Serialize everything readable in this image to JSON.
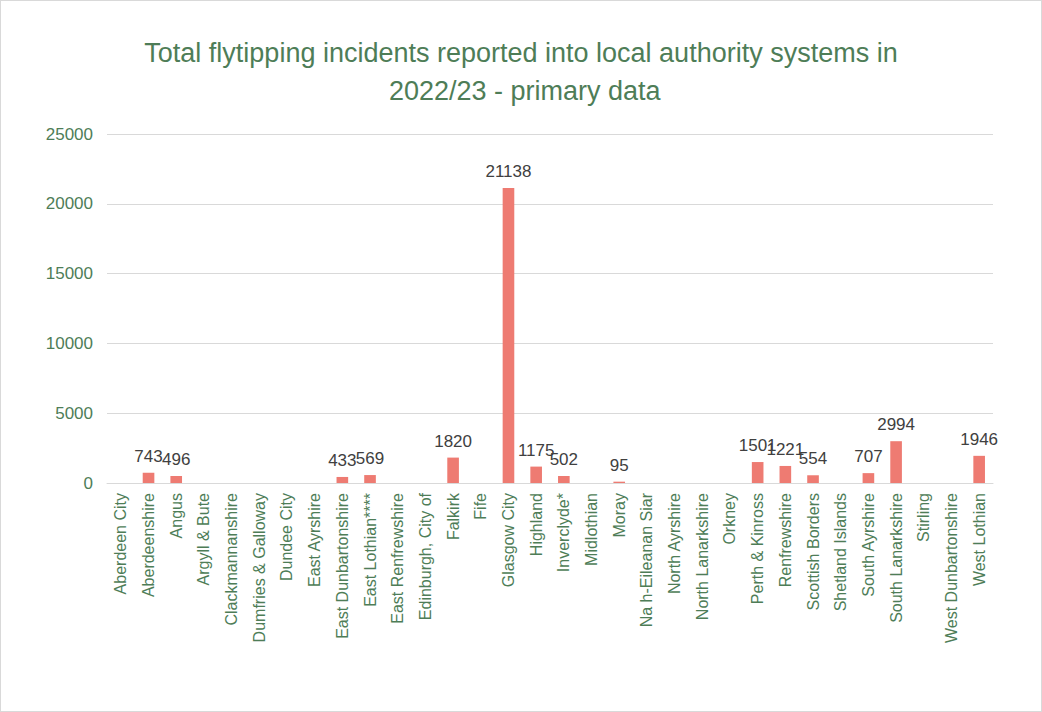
{
  "chart_data": {
    "type": "bar",
    "title": "Total flytipping incidents reported into local authority systems in 2022/23 - primary data",
    "categories": [
      "Aberdeen City",
      "Aberdeenshire",
      "Angus",
      "Argyll & Bute",
      "Clackmannanshire",
      "Dumfries & Galloway",
      "Dundee City",
      "East Ayrshire",
      "East Dunbartonshire",
      "East Lothian****",
      "East Renfrewshire",
      "Edinburgh, City of",
      "Falkirk",
      "Fife",
      "Glasgow City",
      "Highland",
      "Inverclyde*",
      "Midlothian",
      "Moray",
      "Na h-Eileanan Siar",
      "North Ayrshire",
      "North Lanarkshire",
      "Orkney",
      "Perth & Kinross",
      "Renfrewshire",
      "Scottish Borders",
      "Shetland Islands",
      "South Ayrshire",
      "South Lanarkshire",
      "Stirling",
      "West Dunbartonshire",
      "West Lothian"
    ],
    "values": [
      null,
      743,
      496,
      null,
      null,
      null,
      null,
      null,
      433,
      569,
      null,
      null,
      1820,
      null,
      21138,
      1175,
      502,
      null,
      95,
      null,
      null,
      null,
      null,
      1501,
      1221,
      554,
      null,
      707,
      2994,
      null,
      null,
      1946
    ],
    "color": "#ee7b72",
    "ylim": [
      0,
      25000
    ],
    "yticks": [
      0,
      5000,
      10000,
      15000,
      20000,
      25000
    ],
    "grid": true,
    "data_labels": true
  }
}
